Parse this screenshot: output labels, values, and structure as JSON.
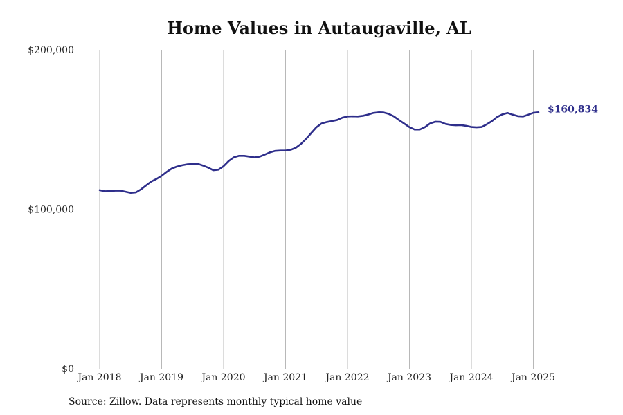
{
  "chart_data": {
    "type": "line",
    "title": "Home Values in Autaugaville, AL",
    "source": "Source: Zillow. Data represents monthly typical home value",
    "xlabel": "",
    "ylabel": "",
    "x_ticks": [
      "Jan 2018",
      "Jan 2019",
      "Jan 2020",
      "Jan 2021",
      "Jan 2022",
      "Jan 2023",
      "Jan 2024",
      "Jan 2025"
    ],
    "y_ticks": [
      "$0",
      "$100,000",
      "$200,000"
    ],
    "y_tick_values": [
      0,
      100000,
      200000
    ],
    "ylim": [
      0,
      200000
    ],
    "xlim": [
      "2018-01",
      "2025-02"
    ],
    "grid": "vertical",
    "line_color": "#2e2e8b",
    "last_value_label": "$160,834",
    "series": [
      {
        "x": [
          "2018-01",
          "2018-02",
          "2018-03",
          "2018-04",
          "2018-05",
          "2018-06",
          "2018-07",
          "2018-08",
          "2018-09",
          "2018-10",
          "2018-11",
          "2018-12",
          "2019-01",
          "2019-02",
          "2019-03",
          "2019-04",
          "2019-05",
          "2019-06",
          "2019-07",
          "2019-08",
          "2019-09",
          "2019-10",
          "2019-11",
          "2019-12",
          "2020-01",
          "2020-02",
          "2020-03",
          "2020-04",
          "2020-05",
          "2020-06",
          "2020-07",
          "2020-08",
          "2020-09",
          "2020-10",
          "2020-11",
          "2020-12",
          "2021-01",
          "2021-02",
          "2021-03",
          "2021-04",
          "2021-05",
          "2021-06",
          "2021-07",
          "2021-08",
          "2021-09",
          "2021-10",
          "2021-11",
          "2021-12",
          "2022-01",
          "2022-02",
          "2022-03",
          "2022-04",
          "2022-05",
          "2022-06",
          "2022-07",
          "2022-08",
          "2022-09",
          "2022-10",
          "2022-11",
          "2022-12",
          "2023-01",
          "2023-02",
          "2023-03",
          "2023-04",
          "2023-05",
          "2023-06",
          "2023-07",
          "2023-08",
          "2023-09",
          "2023-10",
          "2023-11",
          "2023-12",
          "2024-01",
          "2024-02",
          "2024-03",
          "2024-04",
          "2024-05",
          "2024-06",
          "2024-07",
          "2024-08",
          "2024-09",
          "2024-10",
          "2024-11",
          "2024-12",
          "2025-01",
          "2025-02"
        ],
        "values": [
          112000,
          111300,
          111400,
          111700,
          111700,
          111000,
          110300,
          110600,
          112500,
          115000,
          117400,
          119000,
          121000,
          123500,
          125600,
          126800,
          127600,
          128200,
          128400,
          128500,
          127400,
          126100,
          124500,
          124800,
          127000,
          130300,
          132600,
          133500,
          133500,
          133000,
          132500,
          133000,
          134300,
          135700,
          136600,
          136800,
          136800,
          137300,
          138600,
          141000,
          144200,
          147900,
          151500,
          153800,
          154700,
          155300,
          156000,
          157400,
          158200,
          158300,
          158200,
          158600,
          159400,
          160400,
          160800,
          160700,
          159800,
          158200,
          155900,
          153700,
          151500,
          150000,
          150000,
          151500,
          153800,
          154900,
          154800,
          153500,
          152900,
          152700,
          152800,
          152300,
          151600,
          151400,
          151600,
          153300,
          155300,
          157900,
          159500,
          160400,
          159300,
          158400,
          158200,
          159300,
          160500,
          160834
        ]
      }
    ]
  }
}
